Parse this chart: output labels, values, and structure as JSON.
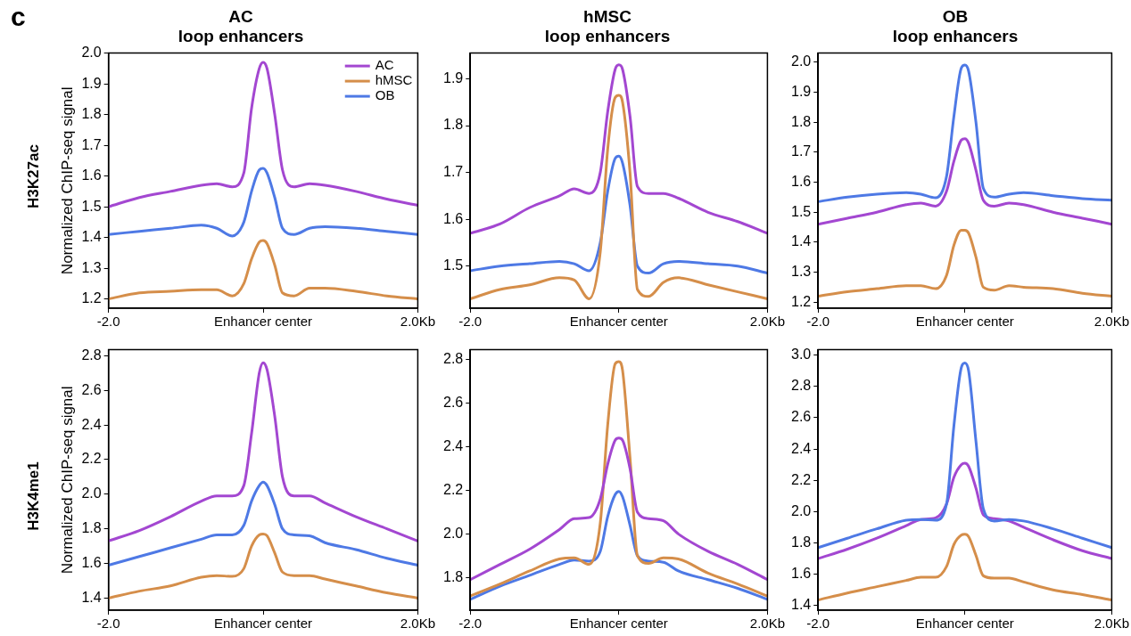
{
  "chart_data": [
    {
      "type": "line",
      "title": "AC\nloop enhancers",
      "ylabel": "Normalized ChIP-seq signal",
      "annotations": [
        "c",
        "H3K27ac"
      ],
      "legend": "top right",
      "grid": false,
      "xlim": [
        -2,
        2
      ],
      "xticks": [
        {
          "value": -2,
          "label": "-2.0"
        },
        {
          "value": 0,
          "label": "Enhancer center"
        },
        {
          "value": 2,
          "label": "2.0Kb"
        }
      ],
      "ylim": [
        1.17,
        2.0
      ],
      "yticks": [
        {
          "value": 1.2,
          "label": "1.2"
        },
        {
          "value": 1.3,
          "label": "1.3"
        },
        {
          "value": 1.4,
          "label": "1.4"
        },
        {
          "value": 1.5,
          "label": "1.5"
        },
        {
          "value": 1.6,
          "label": "1.6"
        },
        {
          "value": 1.7,
          "label": "1.7"
        },
        {
          "value": 1.8,
          "label": "1.8"
        },
        {
          "value": 1.9,
          "label": "1.9"
        },
        {
          "value": 2,
          "label": "2.0"
        }
      ],
      "x": [
        -2,
        -1.6,
        -1.2,
        -0.8,
        -0.6,
        -0.4,
        -0.25,
        -0.15,
        -0.05,
        0,
        0.05,
        0.15,
        0.25,
        0.4,
        0.6,
        0.8,
        1.2,
        1.6,
        2
      ],
      "series": [
        {
          "name": "AC",
          "color": "#a347d1",
          "values": [
            1.5,
            1.53,
            1.55,
            1.57,
            1.575,
            1.565,
            1.61,
            1.82,
            1.95,
            1.97,
            1.95,
            1.8,
            1.62,
            1.565,
            1.575,
            1.57,
            1.55,
            1.525,
            1.505
          ]
        },
        {
          "name": "hMSC",
          "color": "#d58e4a",
          "values": [
            1.2,
            1.22,
            1.225,
            1.23,
            1.23,
            1.21,
            1.25,
            1.33,
            1.385,
            1.39,
            1.38,
            1.31,
            1.22,
            1.21,
            1.235,
            1.235,
            1.225,
            1.21,
            1.2
          ]
        },
        {
          "name": "OB",
          "color": "#4e79e5",
          "values": [
            1.41,
            1.42,
            1.43,
            1.44,
            1.43,
            1.405,
            1.45,
            1.55,
            1.62,
            1.625,
            1.61,
            1.53,
            1.43,
            1.41,
            1.43,
            1.435,
            1.43,
            1.42,
            1.41
          ]
        }
      ]
    },
    {
      "type": "line",
      "title": "hMSC\nloop enhancers",
      "grid": false,
      "xlim": [
        -2,
        2
      ],
      "xticks": [
        {
          "value": -2,
          "label": "-2.0"
        },
        {
          "value": 0,
          "label": "Enhancer center"
        },
        {
          "value": 2,
          "label": "2.0Kb"
        }
      ],
      "ylim": [
        1.41,
        1.955
      ],
      "yticks": [
        {
          "value": 1.5,
          "label": "1.5"
        },
        {
          "value": 1.6,
          "label": "1.6"
        },
        {
          "value": 1.7,
          "label": "1.7"
        },
        {
          "value": 1.8,
          "label": "1.8"
        },
        {
          "value": 1.9,
          "label": "1.9"
        }
      ],
      "x": [
        -2,
        -1.6,
        -1.2,
        -0.8,
        -0.6,
        -0.4,
        -0.25,
        -0.15,
        -0.05,
        0,
        0.05,
        0.15,
        0.25,
        0.4,
        0.6,
        0.8,
        1.2,
        1.6,
        2
      ],
      "series": [
        {
          "color": "#a347d1",
          "values": [
            1.57,
            1.59,
            1.625,
            1.65,
            1.665,
            1.655,
            1.7,
            1.83,
            1.92,
            1.93,
            1.92,
            1.82,
            1.67,
            1.655,
            1.655,
            1.645,
            1.615,
            1.595,
            1.57
          ]
        },
        {
          "color": "#d58e4a",
          "values": [
            1.43,
            1.45,
            1.46,
            1.475,
            1.47,
            1.43,
            1.53,
            1.75,
            1.86,
            1.865,
            1.85,
            1.7,
            1.45,
            1.435,
            1.465,
            1.475,
            1.46,
            1.445,
            1.43
          ]
        },
        {
          "color": "#4e79e5",
          "values": [
            1.49,
            1.5,
            1.505,
            1.51,
            1.505,
            1.49,
            1.55,
            1.66,
            1.73,
            1.735,
            1.72,
            1.63,
            1.5,
            1.485,
            1.505,
            1.51,
            1.505,
            1.5,
            1.485
          ]
        }
      ]
    },
    {
      "type": "line",
      "title": "OB\nloop enhancers",
      "grid": false,
      "xlim": [
        -2,
        2
      ],
      "xticks": [
        {
          "value": -2,
          "label": "-2.0"
        },
        {
          "value": 0,
          "label": "Enhancer center"
        },
        {
          "value": 2,
          "label": "2.0Kb"
        }
      ],
      "ylim": [
        1.18,
        2.03
      ],
      "yticks": [
        {
          "value": 1.2,
          "label": "1.2"
        },
        {
          "value": 1.3,
          "label": "1.3"
        },
        {
          "value": 1.4,
          "label": "1.4"
        },
        {
          "value": 1.5,
          "label": "1.5"
        },
        {
          "value": 1.6,
          "label": "1.6"
        },
        {
          "value": 1.7,
          "label": "1.7"
        },
        {
          "value": 1.8,
          "label": "1.8"
        },
        {
          "value": 1.9,
          "label": "1.9"
        },
        {
          "value": 2,
          "label": "2.0"
        }
      ],
      "x": [
        -2,
        -1.6,
        -1.2,
        -0.8,
        -0.6,
        -0.4,
        -0.25,
        -0.15,
        -0.05,
        0,
        0.05,
        0.15,
        0.25,
        0.4,
        0.6,
        0.8,
        1.2,
        1.6,
        2
      ],
      "series": [
        {
          "color": "#4e79e5",
          "values": [
            1.535,
            1.55,
            1.56,
            1.565,
            1.56,
            1.548,
            1.62,
            1.82,
            1.98,
            1.99,
            1.97,
            1.8,
            1.58,
            1.55,
            1.56,
            1.565,
            1.555,
            1.545,
            1.54
          ]
        },
        {
          "color": "#a347d1",
          "values": [
            1.46,
            1.48,
            1.5,
            1.525,
            1.53,
            1.52,
            1.57,
            1.67,
            1.74,
            1.745,
            1.73,
            1.64,
            1.54,
            1.52,
            1.53,
            1.525,
            1.5,
            1.48,
            1.46
          ]
        },
        {
          "color": "#d58e4a",
          "values": [
            1.22,
            1.235,
            1.245,
            1.255,
            1.255,
            1.245,
            1.29,
            1.39,
            1.44,
            1.44,
            1.43,
            1.35,
            1.25,
            1.24,
            1.255,
            1.25,
            1.245,
            1.23,
            1.22
          ]
        }
      ]
    },
    {
      "type": "line",
      "ylabel": "Normalized ChIP-seq signal",
      "annotations": [
        "H3K4me1"
      ],
      "grid": false,
      "xlim": [
        -2,
        2
      ],
      "xticks": [
        {
          "value": -2,
          "label": "-2.0"
        },
        {
          "value": 0,
          "label": "Enhancer center"
        },
        {
          "value": 2,
          "label": "2.0Kb"
        }
      ],
      "ylim": [
        1.33,
        2.835
      ],
      "yticks": [
        {
          "value": 1.4,
          "label": "1.4"
        },
        {
          "value": 1.6,
          "label": "1.6"
        },
        {
          "value": 1.8,
          "label": "1.8"
        },
        {
          "value": 2,
          "label": "2.0"
        },
        {
          "value": 2.2,
          "label": "2.2"
        },
        {
          "value": 2.4,
          "label": "2.4"
        },
        {
          "value": 2.6,
          "label": "2.6"
        },
        {
          "value": 2.8,
          "label": "2.8"
        }
      ],
      "x": [
        -2,
        -1.6,
        -1.2,
        -0.8,
        -0.6,
        -0.4,
        -0.25,
        -0.15,
        -0.05,
        0,
        0.05,
        0.15,
        0.25,
        0.4,
        0.6,
        0.8,
        1.2,
        1.6,
        2
      ],
      "series": [
        {
          "color": "#a347d1",
          "values": [
            1.73,
            1.79,
            1.87,
            1.96,
            1.99,
            1.99,
            2.05,
            2.35,
            2.7,
            2.76,
            2.72,
            2.45,
            2.1,
            1.99,
            1.99,
            1.95,
            1.87,
            1.8,
            1.73
          ]
        },
        {
          "color": "#4e79e5",
          "values": [
            1.59,
            1.64,
            1.69,
            1.74,
            1.765,
            1.765,
            1.82,
            1.96,
            2.05,
            2.07,
            2.05,
            1.94,
            1.8,
            1.765,
            1.76,
            1.72,
            1.68,
            1.63,
            1.59
          ]
        },
        {
          "color": "#d58e4a",
          "values": [
            1.4,
            1.44,
            1.47,
            1.52,
            1.53,
            1.525,
            1.57,
            1.7,
            1.765,
            1.77,
            1.76,
            1.66,
            1.55,
            1.53,
            1.53,
            1.51,
            1.47,
            1.43,
            1.4
          ]
        }
      ]
    },
    {
      "type": "line",
      "grid": false,
      "xlim": [
        -2,
        2
      ],
      "xticks": [
        {
          "value": -2,
          "label": "-2.0"
        },
        {
          "value": 0,
          "label": "Enhancer center"
        },
        {
          "value": 2,
          "label": "2.0Kb"
        }
      ],
      "ylim": [
        1.65,
        2.845
      ],
      "yticks": [
        {
          "value": 1.8,
          "label": "1.8"
        },
        {
          "value": 2,
          "label": "2.0"
        },
        {
          "value": 2.2,
          "label": "2.2"
        },
        {
          "value": 2.4,
          "label": "2.4"
        },
        {
          "value": 2.6,
          "label": "2.6"
        },
        {
          "value": 2.8,
          "label": "2.8"
        }
      ],
      "x": [
        -2,
        -1.6,
        -1.2,
        -0.8,
        -0.6,
        -0.4,
        -0.25,
        -0.15,
        -0.05,
        0,
        0.05,
        0.15,
        0.25,
        0.4,
        0.6,
        0.8,
        1.2,
        1.6,
        2
      ],
      "series": [
        {
          "color": "#a347d1",
          "values": [
            1.79,
            1.86,
            1.93,
            2.02,
            2.07,
            2.075,
            2.16,
            2.32,
            2.43,
            2.44,
            2.43,
            2.3,
            2.1,
            2.07,
            2.06,
            2.0,
            1.92,
            1.86,
            1.79
          ]
        },
        {
          "color": "#d58e4a",
          "values": [
            1.715,
            1.77,
            1.83,
            1.885,
            1.89,
            1.86,
            2.05,
            2.5,
            2.78,
            2.79,
            2.75,
            2.35,
            1.9,
            1.865,
            1.89,
            1.885,
            1.82,
            1.77,
            1.715
          ]
        },
        {
          "color": "#4e79e5",
          "values": [
            1.7,
            1.76,
            1.81,
            1.86,
            1.88,
            1.875,
            1.92,
            2.08,
            2.18,
            2.195,
            2.17,
            2.04,
            1.9,
            1.875,
            1.87,
            1.83,
            1.79,
            1.75,
            1.7
          ]
        }
      ]
    },
    {
      "type": "line",
      "grid": false,
      "xlim": [
        -2,
        2
      ],
      "xticks": [
        {
          "value": -2,
          "label": "-2.0"
        },
        {
          "value": 0,
          "label": "Enhancer center"
        },
        {
          "value": 2,
          "label": "2.0Kb"
        }
      ],
      "ylim": [
        1.37,
        3.035
      ],
      "yticks": [
        {
          "value": 1.4,
          "label": "1.4"
        },
        {
          "value": 1.6,
          "label": "1.6"
        },
        {
          "value": 1.8,
          "label": "1.8"
        },
        {
          "value": 2,
          "label": "2.0"
        },
        {
          "value": 2.2,
          "label": "2.2"
        },
        {
          "value": 2.4,
          "label": "2.4"
        },
        {
          "value": 2.6,
          "label": "2.6"
        },
        {
          "value": 2.8,
          "label": "2.8"
        },
        {
          "value": 3,
          "label": "3.0"
        }
      ],
      "x": [
        -2,
        -1.6,
        -1.2,
        -0.8,
        -0.6,
        -0.4,
        -0.25,
        -0.15,
        -0.05,
        0,
        0.05,
        0.15,
        0.25,
        0.4,
        0.6,
        0.8,
        1.2,
        1.6,
        2
      ],
      "series": [
        {
          "color": "#4e79e5",
          "values": [
            1.77,
            1.83,
            1.89,
            1.945,
            1.95,
            1.945,
            2.05,
            2.55,
            2.92,
            2.95,
            2.9,
            2.45,
            2.02,
            1.94,
            1.95,
            1.94,
            1.89,
            1.83,
            1.77
          ]
        },
        {
          "color": "#a347d1",
          "values": [
            1.7,
            1.76,
            1.83,
            1.91,
            1.95,
            1.96,
            2.05,
            2.22,
            2.3,
            2.31,
            2.29,
            2.15,
            1.98,
            1.955,
            1.94,
            1.9,
            1.82,
            1.75,
            1.7
          ]
        },
        {
          "color": "#d58e4a",
          "values": [
            1.435,
            1.48,
            1.52,
            1.56,
            1.58,
            1.58,
            1.65,
            1.79,
            1.85,
            1.855,
            1.84,
            1.72,
            1.59,
            1.575,
            1.575,
            1.55,
            1.5,
            1.47,
            1.435
          ]
        }
      ]
    }
  ]
}
